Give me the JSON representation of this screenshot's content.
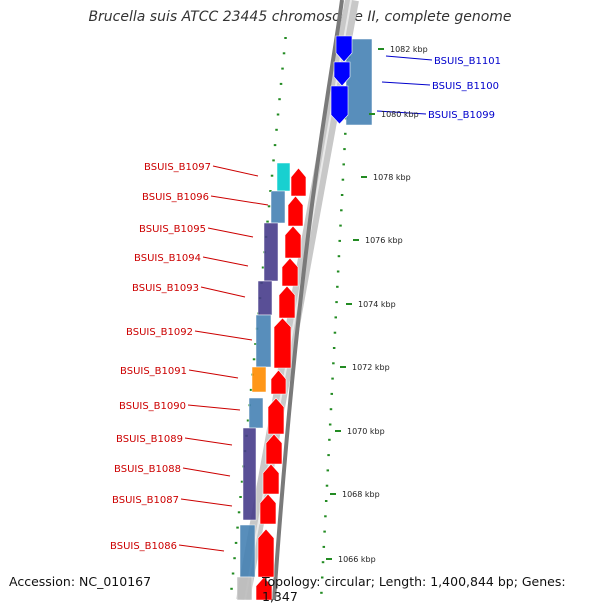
{
  "title": "Brucella suis ATCC 23445 chromosome II, complete genome",
  "accession": "Accession: NC_010167",
  "stats": "Topology: circular; Length: 1,400,844 bp; Genes: 1,347",
  "colors": {
    "reverse_gene": "#ff0000",
    "forward_gene": "#0000ff",
    "cds_steelblue": "#4682b4",
    "cds_darkslate": "#483d8b",
    "cds_orange": "#ff8c00",
    "cds_cyan": "#00cccc",
    "backbone": "#808080",
    "tick": "#228b22",
    "reverse_label": "#cc0000",
    "forward_label": "#0000cc"
  },
  "kbp_ticks": [
    "1066 kbp",
    "1068 kbp",
    "1070 kbp",
    "1072 kbp",
    "1074 kbp",
    "1076 kbp",
    "1078 kbp",
    "1080 kbp",
    "1082 kbp"
  ],
  "reverse_genes": [
    "BSUIS_B1097",
    "BSUIS_B1096",
    "BSUIS_B1095",
    "BSUIS_B1094",
    "BSUIS_B1093",
    "BSUIS_B1092",
    "BSUIS_B1091",
    "BSUIS_B1090",
    "BSUIS_B1089",
    "BSUIS_B1088",
    "BSUIS_B1087",
    "BSUIS_B1086"
  ],
  "forward_genes": [
    "BSUIS_B1101",
    "BSUIS_B1100",
    "BSUIS_B1099"
  ]
}
